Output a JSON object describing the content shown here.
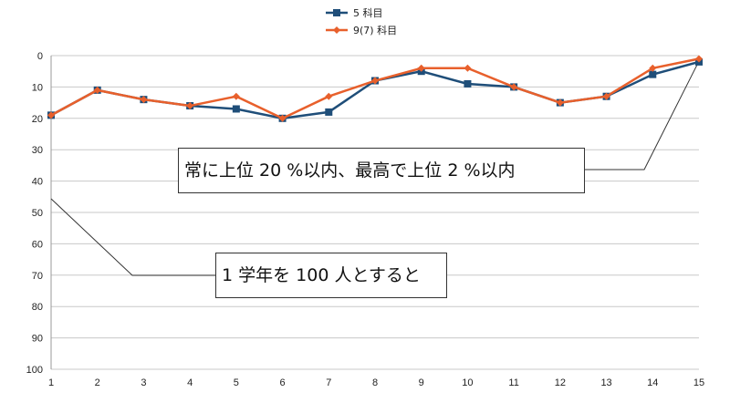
{
  "chart_data": {
    "type": "line",
    "x": [
      1,
      2,
      3,
      4,
      5,
      6,
      7,
      8,
      9,
      10,
      11,
      12,
      13,
      14,
      15
    ],
    "y_ticks": [
      0,
      10,
      20,
      30,
      40,
      50,
      60,
      70,
      80,
      90,
      100
    ],
    "ylim": [
      0,
      100
    ],
    "y_reversed": true,
    "grid": "horizontal",
    "legend_position": "top-center",
    "series": [
      {
        "name": "5 科目",
        "color": "#1f4e79",
        "marker": "square",
        "values": [
          19,
          11,
          14,
          16,
          17,
          20,
          18,
          8,
          5,
          9,
          10,
          15,
          13,
          6,
          2
        ]
      },
      {
        "name": "9(7) 科目",
        "color": "#e8602c",
        "marker": "diamond",
        "values": [
          19,
          11,
          14,
          16,
          13,
          20,
          13,
          8,
          4,
          4,
          10,
          15,
          13,
          4,
          1
        ]
      }
    ],
    "annotations": [
      {
        "id": "callout-1",
        "text": "常に上位 20 %以内、最高で上位 2 %以内"
      },
      {
        "id": "callout-2",
        "text": "1 学年を 100 人とすると"
      }
    ]
  }
}
